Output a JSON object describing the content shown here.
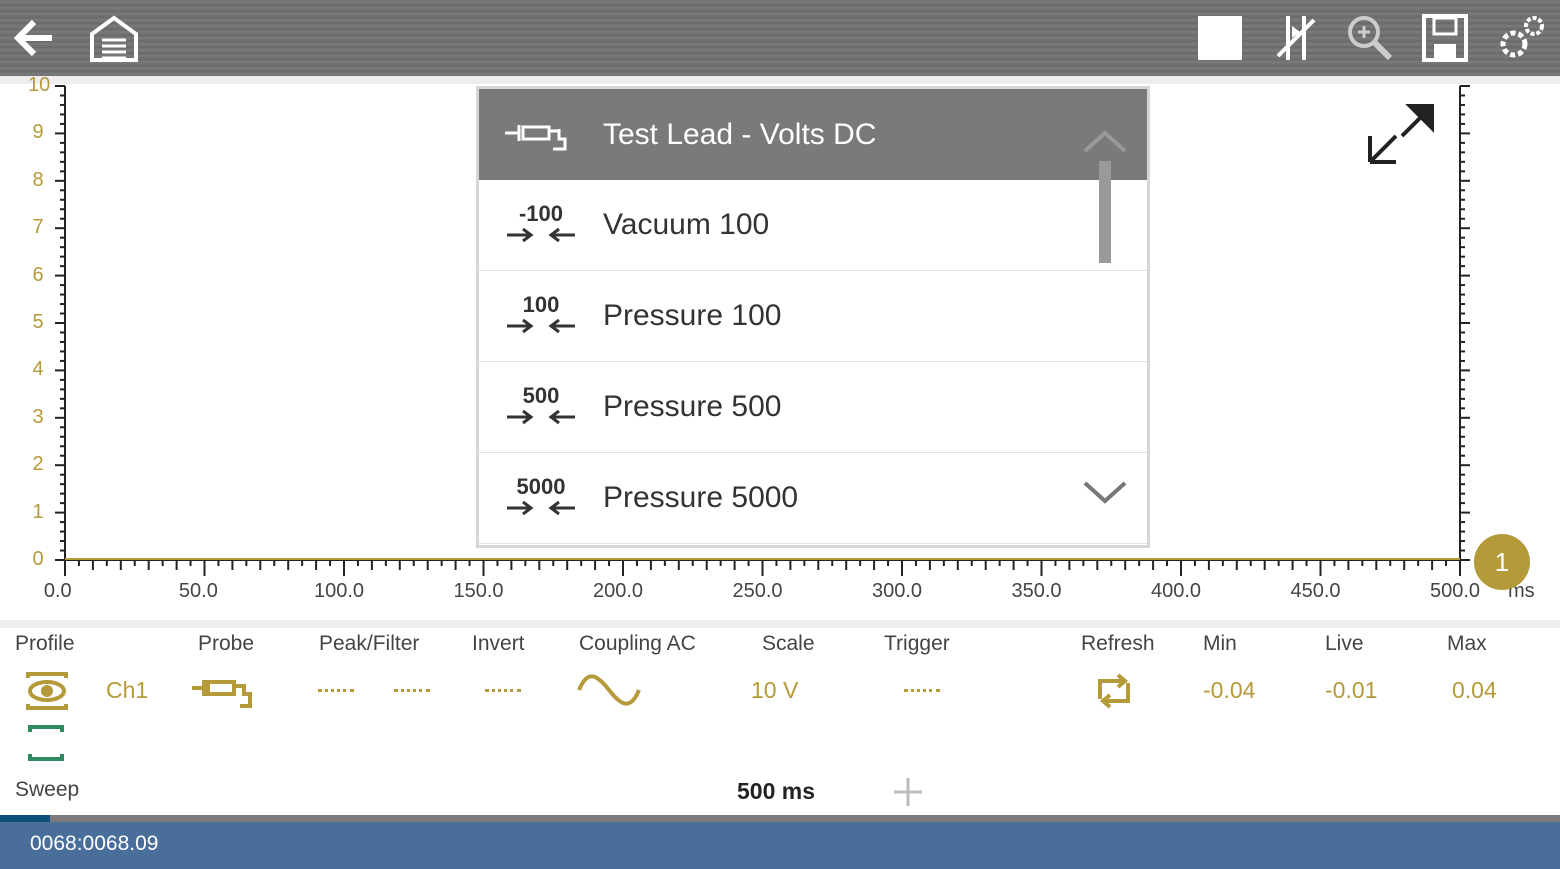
{
  "toolbar": {
    "icons": [
      "back-arrow-icon",
      "home-garage-icon",
      "stop-icon",
      "cursor-split-icon",
      "zoom-icon",
      "save-icon",
      "settings-gears-icon"
    ]
  },
  "chart_data": {
    "type": "line",
    "xlabel": "",
    "ylabel": "",
    "xunit": "ms",
    "xlim": [
      0,
      500
    ],
    "ylim": [
      0,
      10
    ],
    "y_ticks": [
      "0",
      "1",
      "2",
      "3",
      "4",
      "5",
      "6",
      "7",
      "8",
      "9",
      "10"
    ],
    "x_ticks": [
      "0.0",
      "50.0",
      "100.0",
      "150.0",
      "200.0",
      "250.0",
      "300.0",
      "350.0",
      "400.0",
      "450.0",
      "500.0"
    ],
    "series": [
      {
        "values_approx": 0
      }
    ],
    "channel_marker": "1",
    "marker_color": "#b59a3a"
  },
  "dropdown": {
    "selected": "Test Lead - Volts DC",
    "items": [
      {
        "label": "Vacuum 100",
        "badge": "-100"
      },
      {
        "label": "Pressure 100",
        "badge": "100"
      },
      {
        "label": "Pressure 500",
        "badge": "500"
      },
      {
        "label": "Pressure 5000",
        "badge": "5000"
      }
    ]
  },
  "controls": {
    "profile": "Profile",
    "probe": "Probe",
    "peak_filter": "Peak/Filter",
    "invert": "Invert",
    "coupling": "Coupling AC",
    "scale": "Scale",
    "trigger": "Trigger",
    "refresh": "Refresh",
    "min": "Min",
    "live": "Live",
    "max": "Max",
    "channel": "Ch1",
    "scale_value": "10 V",
    "min_value": "-0.04",
    "live_value": "-0.01",
    "max_value": "0.04",
    "sweep": "Sweep",
    "sweep_value": "500 ms"
  },
  "status": {
    "text": "0068:0068.09",
    "progress_percent": 3.2
  },
  "colors": {
    "accent": "#b59a3a",
    "status_bar": "#4a6e9a",
    "green": "#2e8b5f"
  }
}
